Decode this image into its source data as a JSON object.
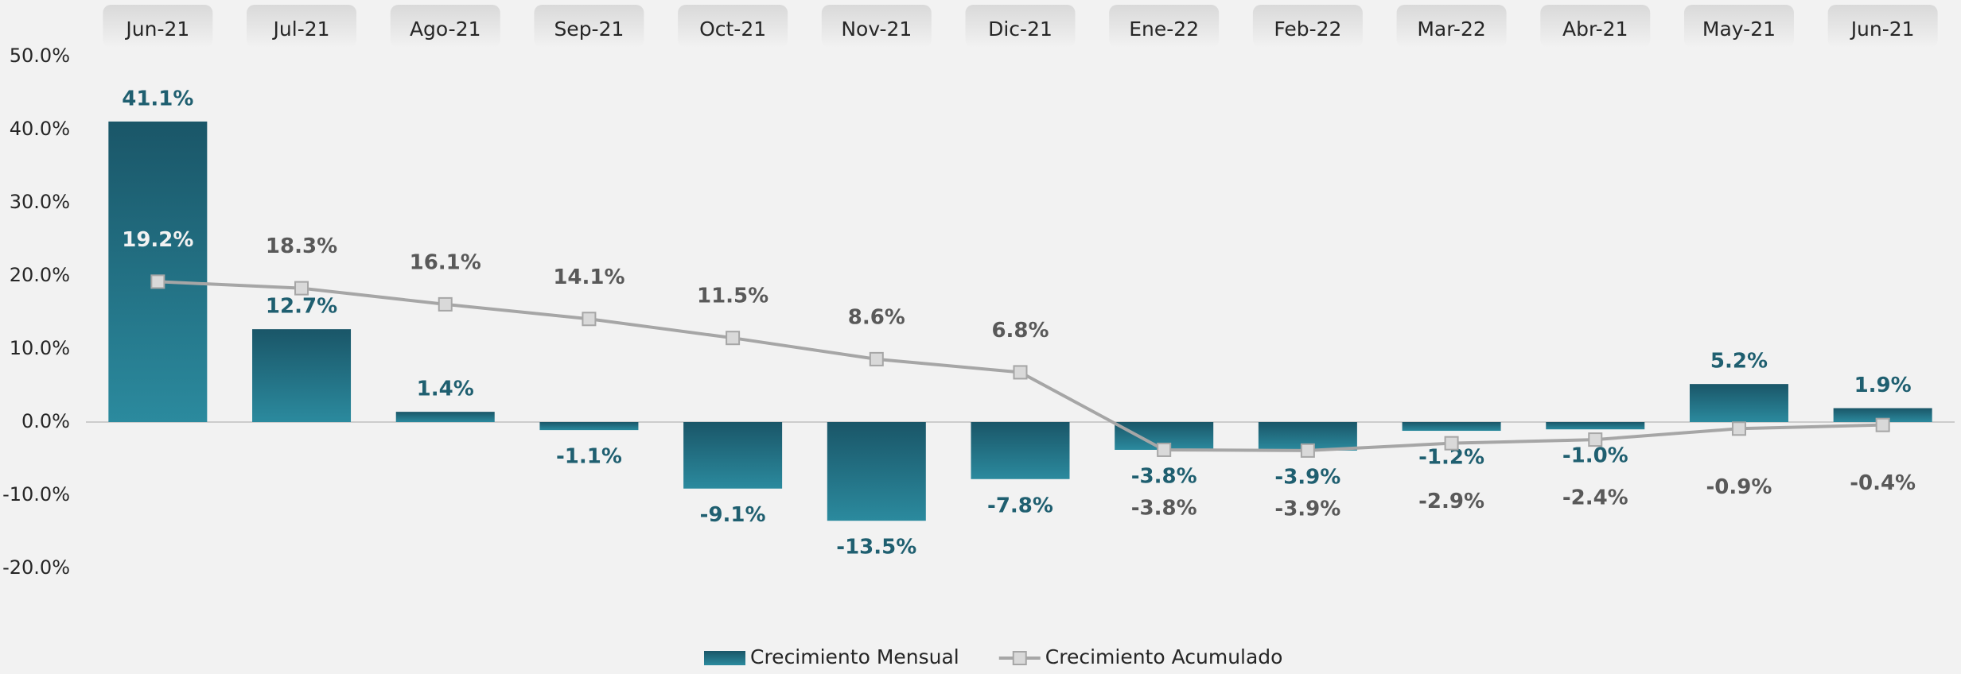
{
  "chart_data": {
    "type": "bar",
    "categories": [
      "Jun-21",
      "Jul-21",
      "Ago-21",
      "Sep-21",
      "Oct-21",
      "Nov-21",
      "Dic-21",
      "Ene-22",
      "Feb-22",
      "Mar-22",
      "Abr-21",
      "May-21",
      "Jun-21"
    ],
    "series": [
      {
        "name": "Crecimiento Mensual",
        "type": "bar",
        "color": "#1f6a7c",
        "values": [
          41.1,
          12.7,
          1.4,
          -1.1,
          -9.1,
          -13.5,
          -7.8,
          -3.8,
          -3.9,
          -1.2,
          -1.0,
          5.2,
          1.9
        ],
        "value_labels": [
          "41.1%",
          "12.7%",
          "1.4%",
          "-1.1%",
          "-9.1%",
          "-13.5%",
          "-7.8%",
          "-3.8%",
          "-3.9%",
          "-1.2%",
          "-1.0%",
          "5.2%",
          "1.9%"
        ]
      },
      {
        "name": "Crecimiento Acumulado",
        "type": "line",
        "color": "#a6a6a6",
        "values": [
          19.2,
          18.3,
          16.1,
          14.1,
          11.5,
          8.6,
          6.8,
          -3.8,
          -3.9,
          -2.9,
          -2.4,
          -0.9,
          -0.4
        ],
        "value_labels": [
          "19.2%",
          "18.3%",
          "16.1%",
          "14.1%",
          "11.5%",
          "8.6%",
          "6.8%",
          "-3.8%",
          "-3.9%",
          "-2.9%",
          "-2.4%",
          "-0.9%",
          "-0.4%"
        ]
      }
    ],
    "ylim": [
      -20,
      50
    ],
    "yticks": [
      {
        "value": -20,
        "label": "-20.0%"
      },
      {
        "value": -10,
        "label": "-10.0%"
      },
      {
        "value": 0,
        "label": "0.0%"
      },
      {
        "value": 10,
        "label": "10.0%"
      },
      {
        "value": 20,
        "label": "20.0%"
      },
      {
        "value": 30,
        "label": "30.0%"
      },
      {
        "value": 40,
        "label": "40.0%"
      },
      {
        "value": 50,
        "label": "50.0%"
      }
    ],
    "grid": false,
    "legend": "bottom"
  }
}
